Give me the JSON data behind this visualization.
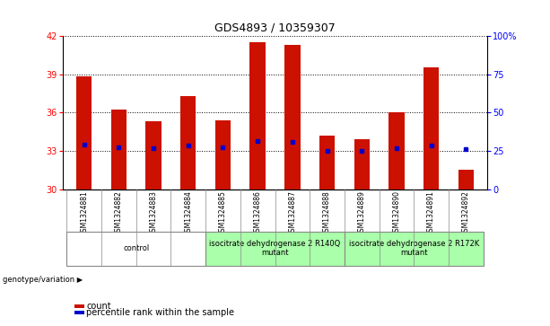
{
  "title": "GDS4893 / 10359307",
  "samples": [
    "GSM1324881",
    "GSM1324882",
    "GSM1324883",
    "GSM1324884",
    "GSM1324885",
    "GSM1324886",
    "GSM1324887",
    "GSM1324888",
    "GSM1324889",
    "GSM1324890",
    "GSM1324891",
    "GSM1324892"
  ],
  "counts": [
    38.8,
    36.2,
    35.3,
    37.3,
    35.4,
    41.5,
    41.3,
    34.2,
    33.9,
    36.0,
    39.5,
    31.5
  ],
  "percentiles": [
    33.5,
    33.3,
    33.2,
    33.4,
    33.3,
    33.8,
    33.7,
    33.0,
    33.0,
    33.2,
    33.4,
    33.1
  ],
  "ylim_left": [
    30,
    42
  ],
  "ylim_right": [
    0,
    100
  ],
  "yticks_left": [
    30,
    33,
    36,
    39,
    42
  ],
  "yticks_right": [
    0,
    25,
    50,
    75,
    100
  ],
  "bar_color": "#cc1100",
  "dot_color": "#0000cc",
  "bar_width": 0.45,
  "groups": [
    {
      "label": "control",
      "start": 0,
      "end": 3,
      "color": "#ffffff"
    },
    {
      "label": "isocitrate dehydrogenase 2 R140Q\nmutant",
      "start": 4,
      "end": 7,
      "color": "#aaffaa"
    },
    {
      "label": "isocitrate dehydrogenase 2 R172K\nmutant",
      "start": 8,
      "end": 11,
      "color": "#aaffaa"
    }
  ],
  "genotype_label": "genotype/variation ▶",
  "bg_color": "#ffffff",
  "plot_bg": "#ffffff",
  "grid_linestyle": ":",
  "grid_color": "#000000",
  "title_fontsize": 9,
  "tick_fontsize": 7,
  "sample_fontsize": 5.5,
  "group_fontsize": 6,
  "legend_fontsize": 7
}
